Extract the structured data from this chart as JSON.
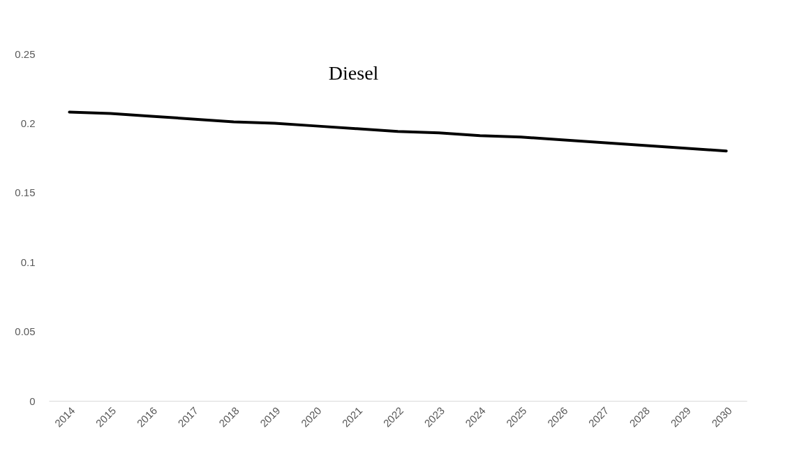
{
  "chart_data": {
    "type": "line",
    "title": "Diesel",
    "categories": [
      "2014",
      "2015",
      "2016",
      "2017",
      "2018",
      "2019",
      "2020",
      "2021",
      "2022",
      "2023",
      "2024",
      "2025",
      "2026",
      "2027",
      "2028",
      "2029",
      "2030"
    ],
    "series": [
      {
        "color": "#000000",
        "values": [
          0.208,
          0.207,
          0.205,
          0.203,
          0.201,
          0.2,
          0.198,
          0.196,
          0.194,
          0.193,
          0.191,
          0.19,
          0.188,
          0.186,
          0.184,
          0.182,
          0.18
        ]
      }
    ],
    "ylim": [
      0,
      0.25
    ],
    "yticks": [
      0,
      0.05,
      0.1,
      0.15,
      0.2,
      0.25
    ],
    "grid": false,
    "marker": "none",
    "line_style": "solid"
  }
}
